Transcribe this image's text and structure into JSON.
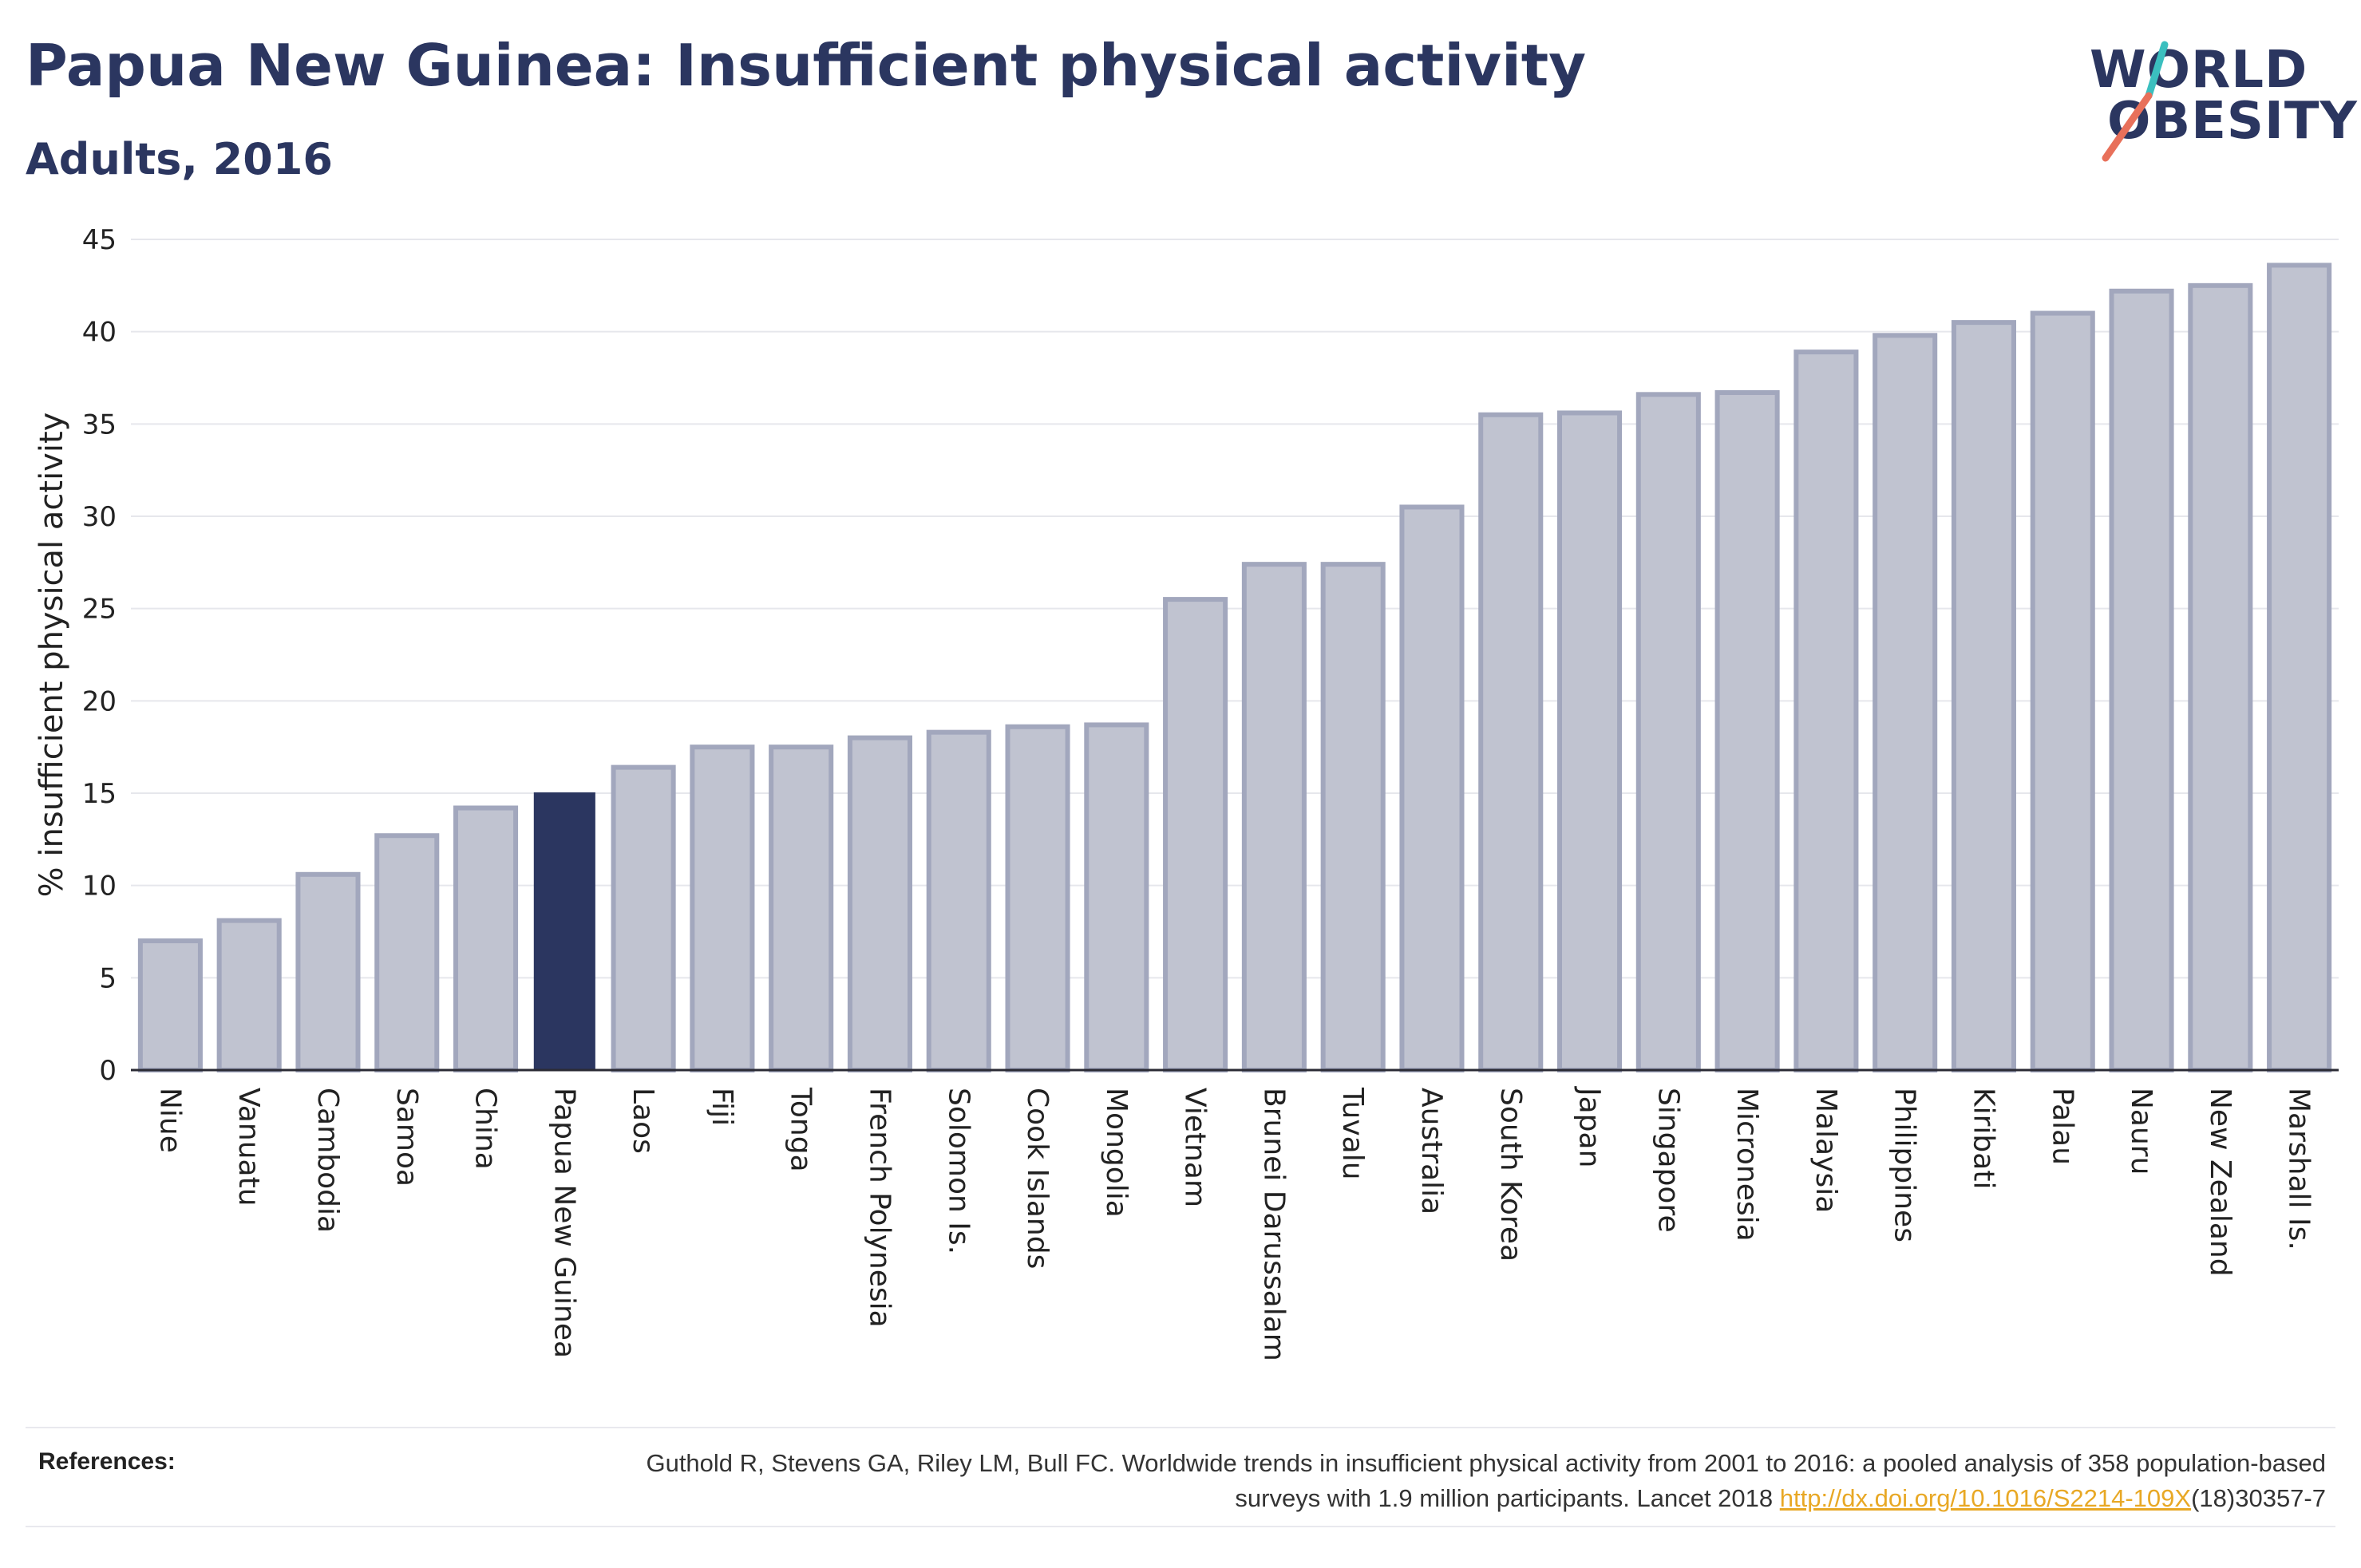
{
  "header": {
    "title": "Papua New Guinea: Insufficient physical activity",
    "subtitle": "Adults, 2016"
  },
  "logo": {
    "line1": "WORLD",
    "line2": "OBESITY"
  },
  "references": {
    "label": "References:",
    "text_before": "Guthold R, Stevens GA, Riley LM, Bull FC. Worldwide trends in insufficient physical activity from 2001 to 2016: a pooled analysis of 358 population-based surveys with 1.9 million participants. Lancet 2018 ",
    "link": "http://dx.doi.org/10.1016/S2214-109X",
    "text_after": "(18)30357-7"
  },
  "colors": {
    "highlight": "#2b3660",
    "bar_fill": "#c0c3d0",
    "bar_border": "#a2a7bd",
    "title": "#2b3660",
    "logo_slash_teal": "#3bbfbf",
    "logo_slash_coral": "#e8705a"
  },
  "chart_data": {
    "type": "bar",
    "title": "Papua New Guinea: Insufficient physical activity",
    "subtitle": "Adults, 2016",
    "xlabel": "",
    "ylabel": "% insufficient physical activity",
    "ylim": [
      0,
      45
    ],
    "yticks": [
      0,
      5,
      10,
      15,
      20,
      25,
      30,
      35,
      40,
      45
    ],
    "grid": true,
    "highlight": "Papua New Guinea",
    "categories": [
      "Niue",
      "Vanuatu",
      "Cambodia",
      "Samoa",
      "China",
      "Papua New Guinea",
      "Laos",
      "Fiji",
      "Tonga",
      "French Polynesia",
      "Solomon Is.",
      "Cook Islands",
      "Mongolia",
      "Vietnam",
      "Brunei Darussalam",
      "Tuvalu",
      "Australia",
      "South Korea",
      "Japan",
      "Singapore",
      "Micronesia",
      "Malaysia",
      "Philippines",
      "Kiribati",
      "Palau",
      "Nauru",
      "New Zealand",
      "Marshall Is."
    ],
    "values": [
      7.0,
      8.1,
      10.6,
      12.7,
      14.2,
      15.0,
      16.4,
      17.5,
      17.5,
      18.0,
      18.3,
      18.6,
      18.7,
      25.5,
      27.4,
      27.4,
      30.5,
      35.5,
      35.6,
      36.6,
      36.7,
      38.9,
      39.8,
      40.5,
      41.0,
      42.2,
      42.5,
      43.6
    ]
  }
}
